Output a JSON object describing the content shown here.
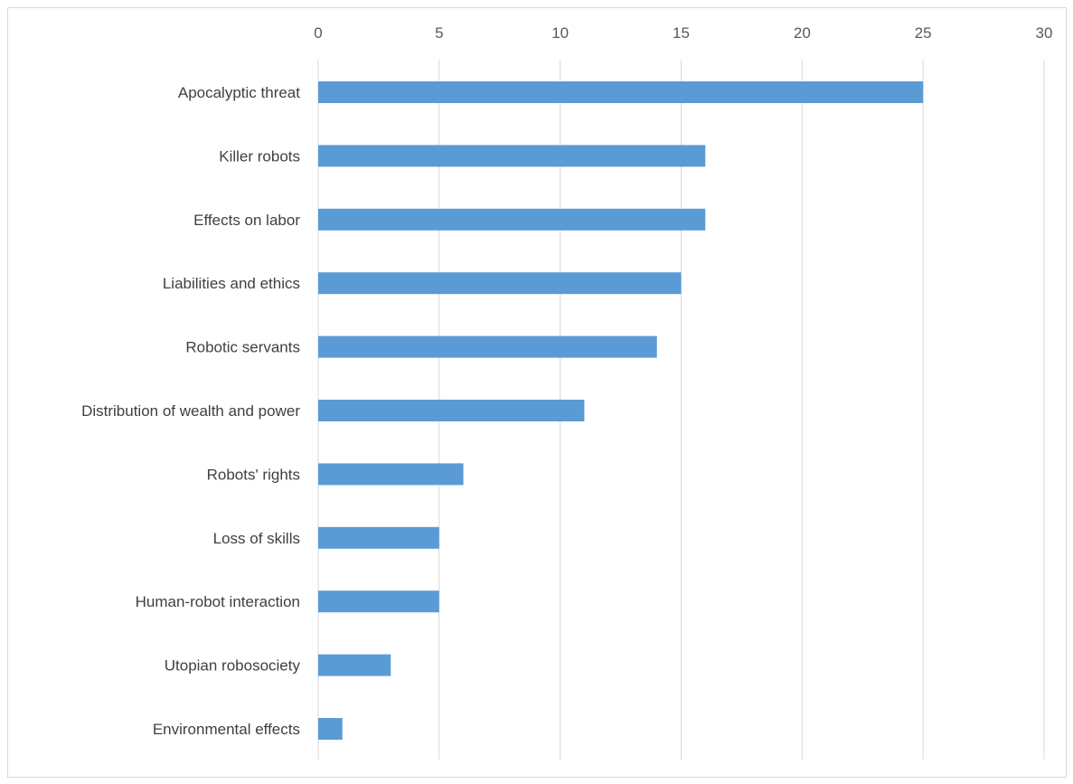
{
  "colors": {
    "bar": "#5b9bd5",
    "gridline": "#d9d9d9",
    "tick_text": "#595959",
    "category_text": "#404040"
  },
  "chart_data": {
    "type": "bar",
    "orientation": "horizontal",
    "categories": [
      "Apocalyptic threat",
      "Killer robots",
      "Effects on labor",
      "Liabilities and ethics",
      "Robotic servants",
      "Distribution of wealth and power",
      "Robots' rights",
      "Loss of skills",
      "Human-robot interaction",
      "Utopian robosociety",
      "Environmental effects"
    ],
    "values": [
      25,
      16,
      16,
      15,
      14,
      11,
      6,
      5,
      5,
      3,
      1
    ],
    "xlim": [
      0,
      30
    ],
    "xticks": [
      0,
      5,
      10,
      15,
      20,
      25,
      30
    ],
    "x_axis_position": "top",
    "grid": true,
    "legend": "none",
    "title": "",
    "xlabel": "",
    "ylabel": ""
  }
}
